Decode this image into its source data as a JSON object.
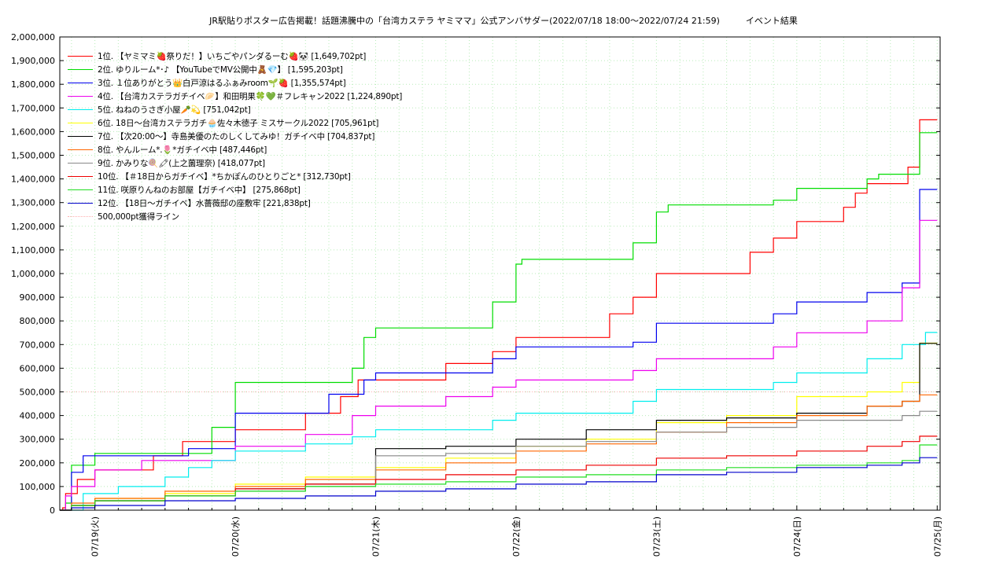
{
  "chart_data": {
    "type": "line",
    "title": "JR駅貼りポスター広告掲載！話題沸騰中の「台湾カステラ ヤミママ」公式アンバサダー(2022/07/18 18:00〜2022/07/24 21:59)　　　イベント結果",
    "xlabel": "",
    "ylabel": "",
    "ylim": [
      0,
      2000000
    ],
    "xlim": [
      "2022-07-18T18:00",
      "2022-07-25T00:30"
    ],
    "grid": true,
    "legend_position": "top-left",
    "y_ticks": [
      0,
      100000,
      200000,
      300000,
      400000,
      500000,
      600000,
      700000,
      800000,
      900000,
      1000000,
      1100000,
      1200000,
      1300000,
      1400000,
      1500000,
      1600000,
      1700000,
      1800000,
      1900000,
      2000000
    ],
    "y_tick_labels": [
      "0",
      "100,000",
      "200,000",
      "300,000",
      "400,000",
      "500,000",
      "600,000",
      "700,000",
      "800,000",
      "900,000",
      "1,000,000",
      "1,100,000",
      "1,200,000",
      "1,300,000",
      "1,400,000",
      "1,500,000",
      "1,600,000",
      "1,700,000",
      "1,800,000",
      "1,900,000",
      "2,000,000"
    ],
    "x_ticks": [
      "2022-07-19T00:00",
      "2022-07-20T00:00",
      "2022-07-21T00:00",
      "2022-07-22T00:00",
      "2022-07-23T00:00",
      "2022-07-24T00:00",
      "2022-07-25T00:00"
    ],
    "x_tick_labels": [
      "07/19(火)",
      "07/20(水)",
      "07/21(木)",
      "07/22(金)",
      "07/23(土)",
      "07/24(日)",
      "07/25(月)"
    ],
    "reference_line": {
      "name": "500,000pt獲得ライン",
      "value": 500000,
      "color": "#ffb0b0"
    },
    "series": [
      {
        "name": "1位. 【ヤミマミ🍓祭りだ！】いちごやパンダるーむ🍓🐼 [1,649,702pt]",
        "color": "#ff0000",
        "points": [
          [
            "07-18 18:00",
            0
          ],
          [
            "07-18 18:30",
            10000
          ],
          [
            "07-18 19:00",
            70000
          ],
          [
            "07-18 21:00",
            130000
          ],
          [
            "07-19 00:00",
            170000
          ],
          [
            "07-19 10:00",
            230000
          ],
          [
            "07-19 15:00",
            290000
          ],
          [
            "07-20 00:00",
            340000
          ],
          [
            "07-20 12:00",
            410000
          ],
          [
            "07-20 18:00",
            480000
          ],
          [
            "07-20 21:00",
            550000
          ],
          [
            "07-21 12:00",
            620000
          ],
          [
            "07-21 20:00",
            670000
          ],
          [
            "07-22 00:00",
            730000
          ],
          [
            "07-22 16:00",
            830000
          ],
          [
            "07-22 20:00",
            900000
          ],
          [
            "07-23 00:00",
            1000000
          ],
          [
            "07-23 16:00",
            1090000
          ],
          [
            "07-23 20:00",
            1150000
          ],
          [
            "07-24 00:00",
            1220000
          ],
          [
            "07-24 08:00",
            1280000
          ],
          [
            "07-24 10:00",
            1340000
          ],
          [
            "07-24 12:00",
            1380000
          ],
          [
            "07-24 19:00",
            1450000
          ],
          [
            "07-24 21:00",
            1649702
          ],
          [
            "07-25 00:00",
            1649702
          ]
        ]
      },
      {
        "name": "2位. ゆりルーム*･♪ 【YouTubeでMV公開中🧸💎】 [1,595,203pt]",
        "color": "#00dd00",
        "points": [
          [
            "07-18 18:00",
            0
          ],
          [
            "07-18 19:00",
            30000
          ],
          [
            "07-18 20:00",
            190000
          ],
          [
            "07-19 00:00",
            240000
          ],
          [
            "07-19 20:00",
            350000
          ],
          [
            "07-20 00:00",
            540000
          ],
          [
            "07-20 20:00",
            600000
          ],
          [
            "07-20 22:00",
            730000
          ],
          [
            "07-21 00:00",
            770000
          ],
          [
            "07-21 20:00",
            880000
          ],
          [
            "07-22 00:00",
            1040000
          ],
          [
            "07-22 01:00",
            1060000
          ],
          [
            "07-22 20:00",
            1130000
          ],
          [
            "07-23 00:00",
            1260000
          ],
          [
            "07-23 02:00",
            1290000
          ],
          [
            "07-23 20:00",
            1310000
          ],
          [
            "07-24 00:00",
            1360000
          ],
          [
            "07-24 12:00",
            1400000
          ],
          [
            "07-24 14:00",
            1420000
          ],
          [
            "07-24 21:00",
            1595203
          ],
          [
            "07-25 00:00",
            1595203
          ]
        ]
      },
      {
        "name": "3位. １位ありがとう👑白戸涼はるふぁみroom🌱🍓 [1,355,574pt]",
        "color": "#0000ee",
        "points": [
          [
            "07-18 18:00",
            0
          ],
          [
            "07-18 20:00",
            160000
          ],
          [
            "07-18 22:00",
            230000
          ],
          [
            "07-19 16:00",
            260000
          ],
          [
            "07-20 00:00",
            410000
          ],
          [
            "07-20 16:00",
            490000
          ],
          [
            "07-20 22:00",
            550000
          ],
          [
            "07-21 00:00",
            580000
          ],
          [
            "07-21 20:00",
            640000
          ],
          [
            "07-22 00:00",
            690000
          ],
          [
            "07-22 20:00",
            710000
          ],
          [
            "07-23 00:00",
            790000
          ],
          [
            "07-23 20:00",
            830000
          ],
          [
            "07-24 00:00",
            880000
          ],
          [
            "07-24 12:00",
            920000
          ],
          [
            "07-24 18:00",
            960000
          ],
          [
            "07-24 21:00",
            1355574
          ],
          [
            "07-25 00:00",
            1355574
          ]
        ]
      },
      {
        "name": "4位. 【台湾カステラガチイベ🥟】和田明果🍀💚＃フレキャン2022 [1,224,890pt]",
        "color": "#ee00ee",
        "points": [
          [
            "07-18 18:00",
            0
          ],
          [
            "07-18 19:00",
            60000
          ],
          [
            "07-18 20:00",
            100000
          ],
          [
            "07-19 00:00",
            170000
          ],
          [
            "07-19 08:00",
            210000
          ],
          [
            "07-20 00:00",
            270000
          ],
          [
            "07-20 12:00",
            320000
          ],
          [
            "07-20 20:00",
            400000
          ],
          [
            "07-21 00:00",
            440000
          ],
          [
            "07-21 12:00",
            480000
          ],
          [
            "07-21 20:00",
            520000
          ],
          [
            "07-22 00:00",
            550000
          ],
          [
            "07-22 20:00",
            590000
          ],
          [
            "07-23 00:00",
            640000
          ],
          [
            "07-23 20:00",
            690000
          ],
          [
            "07-24 00:00",
            750000
          ],
          [
            "07-24 12:00",
            800000
          ],
          [
            "07-24 18:00",
            940000
          ],
          [
            "07-24 21:00",
            1224890
          ],
          [
            "07-25 00:00",
            1224890
          ]
        ]
      },
      {
        "name": "5位. ねねのうさぎ小屋🥕💫 [751,042pt]",
        "color": "#00eeee",
        "points": [
          [
            "07-18 18:00",
            0
          ],
          [
            "07-18 22:00",
            70000
          ],
          [
            "07-19 04:00",
            100000
          ],
          [
            "07-19 12:00",
            140000
          ],
          [
            "07-19 16:00",
            180000
          ],
          [
            "07-19 20:00",
            210000
          ],
          [
            "07-20 00:00",
            250000
          ],
          [
            "07-20 12:00",
            280000
          ],
          [
            "07-20 20:00",
            310000
          ],
          [
            "07-21 00:00",
            340000
          ],
          [
            "07-21 20:00",
            380000
          ],
          [
            "07-22 00:00",
            410000
          ],
          [
            "07-22 20:00",
            460000
          ],
          [
            "07-23 00:00",
            510000
          ],
          [
            "07-23 20:00",
            540000
          ],
          [
            "07-24 00:00",
            580000
          ],
          [
            "07-24 12:00",
            640000
          ],
          [
            "07-24 18:00",
            700000
          ],
          [
            "07-24 22:00",
            751042
          ],
          [
            "07-25 00:00",
            751042
          ]
        ]
      },
      {
        "name": "6位. 18日〜台湾カステラガチ🧁佐々木徳子 ミスサークル2022 [705,961pt]",
        "color": "#ffff00",
        "points": [
          [
            "07-18 18:00",
            0
          ],
          [
            "07-18 20:00",
            20000
          ],
          [
            "07-19 00:00",
            50000
          ],
          [
            "07-19 12:00",
            70000
          ],
          [
            "07-20 00:00",
            110000
          ],
          [
            "07-20 12:00",
            140000
          ],
          [
            "07-21 00:00",
            180000
          ],
          [
            "07-21 12:00",
            220000
          ],
          [
            "07-22 00:00",
            270000
          ],
          [
            "07-22 12:00",
            300000
          ],
          [
            "07-23 00:00",
            370000
          ],
          [
            "07-23 12:00",
            400000
          ],
          [
            "07-24 00:00",
            480000
          ],
          [
            "07-24 12:00",
            500000
          ],
          [
            "07-24 18:00",
            540000
          ],
          [
            "07-24 21:00",
            705961
          ],
          [
            "07-25 00:00",
            705961
          ]
        ]
      },
      {
        "name": "7位. 【次20:00〜】寺島美優のたのしくしてみゆ！ガチイベ中 [704,837pt]",
        "color": "#000000",
        "points": [
          [
            "07-18 18:00",
            0
          ],
          [
            "07-18 20:00",
            20000
          ],
          [
            "07-19 00:00",
            40000
          ],
          [
            "07-19 12:00",
            60000
          ],
          [
            "07-20 00:00",
            90000
          ],
          [
            "07-20 12:00",
            110000
          ],
          [
            "07-21 00:00",
            260000
          ],
          [
            "07-21 12:00",
            270000
          ],
          [
            "07-22 00:00",
            300000
          ],
          [
            "07-22 12:00",
            340000
          ],
          [
            "07-23 00:00",
            380000
          ],
          [
            "07-23 12:00",
            390000
          ],
          [
            "07-24 00:00",
            410000
          ],
          [
            "07-24 12:00",
            440000
          ],
          [
            "07-24 18:00",
            460000
          ],
          [
            "07-24 21:00",
            704837
          ],
          [
            "07-25 00:00",
            704837
          ]
        ]
      },
      {
        "name": "8位. やんルーム*.🌷*ガチイベ中 [487,446pt]",
        "color": "#ff6600",
        "points": [
          [
            "07-18 18:00",
            0
          ],
          [
            "07-18 20:00",
            30000
          ],
          [
            "07-19 00:00",
            50000
          ],
          [
            "07-19 12:00",
            80000
          ],
          [
            "07-20 00:00",
            100000
          ],
          [
            "07-20 12:00",
            130000
          ],
          [
            "07-21 00:00",
            170000
          ],
          [
            "07-21 12:00",
            200000
          ],
          [
            "07-22 00:00",
            250000
          ],
          [
            "07-22 12:00",
            280000
          ],
          [
            "07-23 00:00",
            330000
          ],
          [
            "07-23 12:00",
            370000
          ],
          [
            "07-24 00:00",
            400000
          ],
          [
            "07-24 12:00",
            440000
          ],
          [
            "07-24 18:00",
            460000
          ],
          [
            "07-24 21:00",
            487446
          ],
          [
            "07-25 00:00",
            487446
          ]
        ]
      },
      {
        "name": "9位. かみりな🍭🖍(上之薗理奈) [418,077pt]",
        "color": "#888888",
        "points": [
          [
            "07-18 18:00",
            0
          ],
          [
            "07-18 20:00",
            20000
          ],
          [
            "07-19 00:00",
            40000
          ],
          [
            "07-19 12:00",
            60000
          ],
          [
            "07-20 00:00",
            80000
          ],
          [
            "07-20 12:00",
            100000
          ],
          [
            "07-21 00:00",
            230000
          ],
          [
            "07-21 12:00",
            240000
          ],
          [
            "07-22 00:00",
            270000
          ],
          [
            "07-22 12:00",
            290000
          ],
          [
            "07-23 00:00",
            330000
          ],
          [
            "07-23 12:00",
            350000
          ],
          [
            "07-24 00:00",
            380000
          ],
          [
            "07-24 18:00",
            400000
          ],
          [
            "07-24 21:00",
            418077
          ],
          [
            "07-25 00:00",
            418077
          ]
        ]
      },
      {
        "name": "10位. 【＃18日からガチイベ】*ちかぽんのひとりごと* [312,730pt]",
        "color": "#ee0000",
        "points": [
          [
            "07-18 18:00",
            0
          ],
          [
            "07-18 20:00",
            20000
          ],
          [
            "07-19 00:00",
            40000
          ],
          [
            "07-19 12:00",
            60000
          ],
          [
            "07-20 00:00",
            90000
          ],
          [
            "07-20 12:00",
            110000
          ],
          [
            "07-21 00:00",
            130000
          ],
          [
            "07-21 12:00",
            150000
          ],
          [
            "07-22 00:00",
            170000
          ],
          [
            "07-22 12:00",
            190000
          ],
          [
            "07-23 00:00",
            220000
          ],
          [
            "07-23 12:00",
            230000
          ],
          [
            "07-24 00:00",
            250000
          ],
          [
            "07-24 12:00",
            270000
          ],
          [
            "07-24 18:00",
            290000
          ],
          [
            "07-24 21:00",
            312730
          ],
          [
            "07-25 00:00",
            312730
          ]
        ]
      },
      {
        "name": "11位. 咲原りんねのお部屋【ガチイベ中】 [275,868pt]",
        "color": "#22dd22",
        "points": [
          [
            "07-18 18:00",
            0
          ],
          [
            "07-18 20:00",
            20000
          ],
          [
            "07-19 00:00",
            40000
          ],
          [
            "07-19 12:00",
            60000
          ],
          [
            "07-20 00:00",
            80000
          ],
          [
            "07-20 12:00",
            100000
          ],
          [
            "07-21 00:00",
            110000
          ],
          [
            "07-21 12:00",
            120000
          ],
          [
            "07-22 00:00",
            140000
          ],
          [
            "07-22 12:00",
            150000
          ],
          [
            "07-23 00:00",
            170000
          ],
          [
            "07-23 12:00",
            180000
          ],
          [
            "07-24 00:00",
            190000
          ],
          [
            "07-24 12:00",
            200000
          ],
          [
            "07-24 18:00",
            210000
          ],
          [
            "07-24 21:00",
            275868
          ],
          [
            "07-25 00:00",
            275868
          ]
        ]
      },
      {
        "name": "12位. 【18日〜ガチイベ】水薔薇邸の座敷牢 [221,838pt]",
        "color": "#0000cc",
        "points": [
          [
            "07-18 18:00",
            0
          ],
          [
            "07-18 20:00",
            10000
          ],
          [
            "07-19 00:00",
            20000
          ],
          [
            "07-19 12:00",
            40000
          ],
          [
            "07-20 00:00",
            50000
          ],
          [
            "07-20 12:00",
            60000
          ],
          [
            "07-21 00:00",
            80000
          ],
          [
            "07-21 12:00",
            90000
          ],
          [
            "07-22 00:00",
            110000
          ],
          [
            "07-22 12:00",
            120000
          ],
          [
            "07-23 00:00",
            150000
          ],
          [
            "07-23 12:00",
            160000
          ],
          [
            "07-24 00:00",
            180000
          ],
          [
            "07-24 12:00",
            190000
          ],
          [
            "07-24 18:00",
            200000
          ],
          [
            "07-24 21:00",
            221838
          ],
          [
            "07-25 00:00",
            221838
          ]
        ]
      }
    ]
  }
}
